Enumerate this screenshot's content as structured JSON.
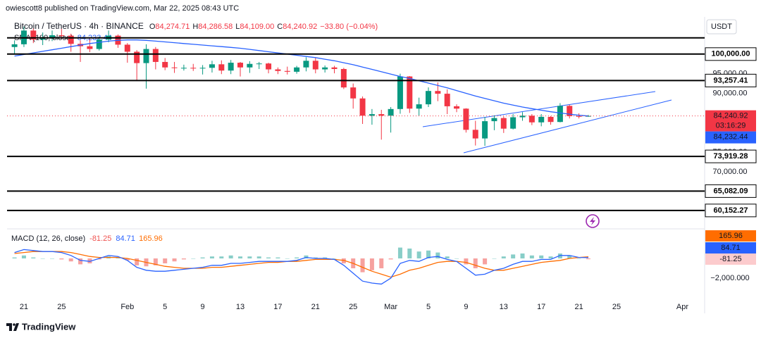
{
  "chart_data": {
    "type": "candlestick",
    "publisher": "owiescott8 published on TradingView.com, Mar 22, 2025 08:43 UTC",
    "title": "Bitcoin / TetherUS · 4h · BINANCE",
    "ohlc": [
      {
        "key": "O",
        "label": "84,274.71"
      },
      {
        "key": "H",
        "label": "84,286.58"
      },
      {
        "key": "L",
        "label": "84,109.00"
      },
      {
        "key": "C",
        "label": "84,240.92"
      }
    ],
    "change": "−33.80 (−0.04%)",
    "currency": "USDT",
    "brand": "TradingView",
    "color_up": "#089981",
    "color_down": "#f23645",
    "categories": [
      null,
      "21",
      null,
      null,
      null,
      "25",
      null,
      null,
      null,
      null,
      null,
      null,
      "Feb",
      null,
      null,
      null,
      "5",
      null,
      null,
      null,
      "9",
      null,
      null,
      null,
      "13",
      null,
      null,
      null,
      "17",
      null,
      null,
      null,
      "21",
      null,
      null,
      null,
      "25",
      null,
      null,
      null,
      "Mar",
      null,
      null,
      null,
      "5",
      null,
      null,
      null,
      "9",
      null,
      null,
      null,
      "13",
      null,
      null,
      null,
      "17",
      null,
      null,
      null,
      "21",
      null,
      null,
      null,
      "25",
      null,
      null,
      null,
      null,
      null,
      null,
      "Apr",
      null
    ],
    "open": [
      101800,
      102500,
      106000,
      103700,
      104000,
      104800,
      104700,
      102600,
      102000,
      101300,
      103700,
      104700,
      102400,
      100600,
      97700,
      101300,
      98000,
      96600,
      96500,
      96500,
      96400,
      96500,
      97400,
      95800,
      97800,
      96600,
      97500,
      97600,
      96100,
      95700,
      95500,
      96600,
      98300,
      96100,
      96600,
      96200,
      91500,
      88700,
      84300,
      84700,
      84300,
      86000,
      94300,
      86100,
      87200,
      90600,
      89900,
      86700,
      86100,
      80700,
      78500,
      82900,
      83700,
      81000,
      83900,
      84300,
      82600,
      84000,
      82700,
      86800,
      84200,
      84100,
      null,
      null,
      null,
      null,
      null,
      null,
      null,
      null,
      null,
      null,
      null
    ],
    "high": [
      103500,
      107000,
      106500,
      105500,
      106000,
      106400,
      105200,
      103500,
      103800,
      104500,
      106000,
      105000,
      102800,
      101000,
      102500,
      101800,
      99000,
      98000,
      97300,
      97500,
      97200,
      98300,
      98400,
      98500,
      98000,
      98200,
      98000,
      97800,
      96600,
      96800,
      97000,
      99200,
      99000,
      97100,
      97000,
      96500,
      92500,
      89200,
      86000,
      85800,
      86500,
      95000,
      94400,
      88900,
      91500,
      92800,
      91000,
      87200,
      86200,
      83000,
      84000,
      84400,
      84100,
      84700,
      85200,
      84700,
      84700,
      84200,
      87500,
      87100,
      84900,
      84500,
      null,
      null,
      null,
      null,
      null,
      null,
      null,
      null,
      null,
      null,
      null
    ],
    "low": [
      100000,
      101800,
      102800,
      102300,
      103300,
      103900,
      100600,
      98000,
      100500,
      100900,
      103000,
      101600,
      97800,
      93300,
      91200,
      96100,
      95900,
      95200,
      95800,
      95700,
      94800,
      95300,
      94900,
      94900,
      94300,
      95200,
      96200,
      95100,
      94900,
      94800,
      95000,
      95600,
      95100,
      95300,
      95100,
      91100,
      86100,
      82200,
      82000,
      78200,
      80000,
      84800,
      85000,
      84300,
      86500,
      88000,
      84700,
      85200,
      80000,
      76700,
      76600,
      80600,
      79900,
      80800,
      83000,
      81900,
      81600,
      82000,
      82600,
      83600,
      83600,
      84000,
      null,
      null,
      null,
      null,
      null,
      null,
      null,
      null,
      null,
      null,
      null
    ],
    "close": [
      102500,
      106000,
      103700,
      104000,
      104800,
      104700,
      102600,
      102000,
      101300,
      103700,
      104700,
      102400,
      100600,
      97700,
      101300,
      98000,
      96600,
      96500,
      96500,
      96400,
      96500,
      97400,
      95800,
      97800,
      96600,
      97500,
      97600,
      96100,
      95700,
      95500,
      96600,
      98300,
      96100,
      96600,
      96200,
      91500,
      88700,
      84300,
      84700,
      84300,
      86000,
      94300,
      86100,
      87200,
      90600,
      89900,
      86700,
      86100,
      80700,
      78500,
      82900,
      83700,
      81000,
      83900,
      84300,
      82600,
      84000,
      82700,
      86800,
      84200,
      84100,
      84240.92,
      null,
      null,
      null,
      null,
      null,
      null,
      null,
      null,
      null,
      null,
      null
    ],
    "last_label": "84,240.92",
    "countdown": "03:16:29",
    "sma": {
      "name": "SMA (100, close)",
      "label": "84,232.44",
      "color": "#2962ff",
      "values": [
        99500,
        99900,
        100300,
        100700,
        101100,
        101500,
        101900,
        102300,
        102700,
        103000,
        103300,
        103500,
        103600,
        103600,
        103500,
        103300,
        103100,
        102900,
        102700,
        102500,
        102300,
        102100,
        101900,
        101700,
        101500,
        101200,
        100900,
        100600,
        100300,
        100000,
        99700,
        99400,
        99100,
        98700,
        98300,
        97800,
        97300,
        96700,
        96100,
        95500,
        94900,
        94300,
        93800,
        93200,
        92600,
        92000,
        91400,
        90700,
        90000,
        89300,
        88700,
        88100,
        87500,
        87000,
        86500,
        86100,
        85700,
        85300,
        85000,
        84700,
        84400,
        84232.44,
        null,
        null,
        null,
        null,
        null,
        null,
        null,
        null,
        null,
        null,
        null
      ]
    },
    "ylim": [
      56000,
      108400
    ],
    "yticks": [
      {
        "value": 95000,
        "label": "95,000.00"
      },
      {
        "value": 90000,
        "label": "90,000.00"
      },
      {
        "value": 75000,
        "label": "75,000.00"
      },
      {
        "value": 70000,
        "label": "70,000.00"
      }
    ],
    "levels": [
      {
        "value": 104130
      },
      {
        "value": 100000,
        "label": "100,000.00"
      },
      {
        "value": 93257.41,
        "label": "93,257.41"
      },
      {
        "value": 73919.28,
        "label": "73,919.28"
      },
      {
        "value": 65082.09,
        "label": "65,082.09"
      },
      {
        "value": 60152.27,
        "label": "60,152.27"
      }
    ],
    "macd": {
      "name": "MACD (12, 26, close)",
      "ylim": [
        -4140,
        2640
      ],
      "yticks": [
        {
          "value": -2000,
          "label": "−2,000.000"
        }
      ],
      "histogram": {
        "color_pos": "#26a69a",
        "color_neg": "#ef5350",
        "color_label": "#fccbcd",
        "values": [
          100,
          300,
          100,
          0,
          0,
          -100,
          -300,
          -600,
          -500,
          -100,
          200,
          100,
          -200,
          -700,
          -800,
          -700,
          -500,
          -300,
          -100,
          0,
          100,
          200,
          200,
          300,
          200,
          200,
          200,
          100,
          100,
          0,
          100,
          300,
          100,
          100,
          0,
          -500,
          -1000,
          -1400,
          -1200,
          -1000,
          -100,
          1100,
          1000,
          700,
          800,
          600,
          200,
          0,
          -600,
          -1000,
          -600,
          0,
          200,
          400,
          500,
          300,
          300,
          200,
          500,
          300,
          0,
          -81.25,
          null,
          null,
          null,
          null,
          null,
          null,
          null,
          null,
          null,
          null,
          null
        ]
      },
      "macd_line": {
        "color": "#2962ff",
        "values": [
          600,
          900,
          800,
          700,
          700,
          600,
          300,
          -200,
          -300,
          0,
          300,
          200,
          -200,
          -900,
          -1200,
          -1300,
          -1300,
          -1200,
          -1100,
          -1000,
          -900,
          -700,
          -700,
          -500,
          -500,
          -400,
          -300,
          -300,
          -300,
          -300,
          -200,
          100,
          0,
          0,
          -100,
          -700,
          -1500,
          -2300,
          -2500,
          -2600,
          -2000,
          -500,
          -200,
          -300,
          100,
          200,
          -100,
          -300,
          -1000,
          -1700,
          -1600,
          -1200,
          -1000,
          -600,
          -300,
          -300,
          -100,
          -100,
          300,
          300,
          100,
          84.71,
          null,
          null,
          null,
          null,
          null,
          null,
          null,
          null,
          null,
          null,
          null
        ]
      },
      "signal_line": {
        "color": "#ff6d00",
        "values": [
          500,
          600,
          700,
          700,
          700,
          700,
          600,
          400,
          200,
          100,
          100,
          100,
          0,
          -200,
          -400,
          -600,
          -800,
          -900,
          -1000,
          -1000,
          -1000,
          -900,
          -900,
          -800,
          -700,
          -600,
          -500,
          -400,
          -400,
          -300,
          -300,
          -200,
          -100,
          -100,
          -100,
          -200,
          -500,
          -900,
          -1300,
          -1600,
          -1900,
          -1600,
          -1200,
          -1000,
          -700,
          -400,
          -300,
          -300,
          -400,
          -700,
          -1000,
          -1200,
          -1200,
          -1000,
          -800,
          -600,
          -400,
          -300,
          -200,
          0,
          100,
          165.96,
          null,
          null,
          null,
          null,
          null,
          null,
          null,
          null,
          null,
          null,
          null
        ]
      }
    }
  }
}
